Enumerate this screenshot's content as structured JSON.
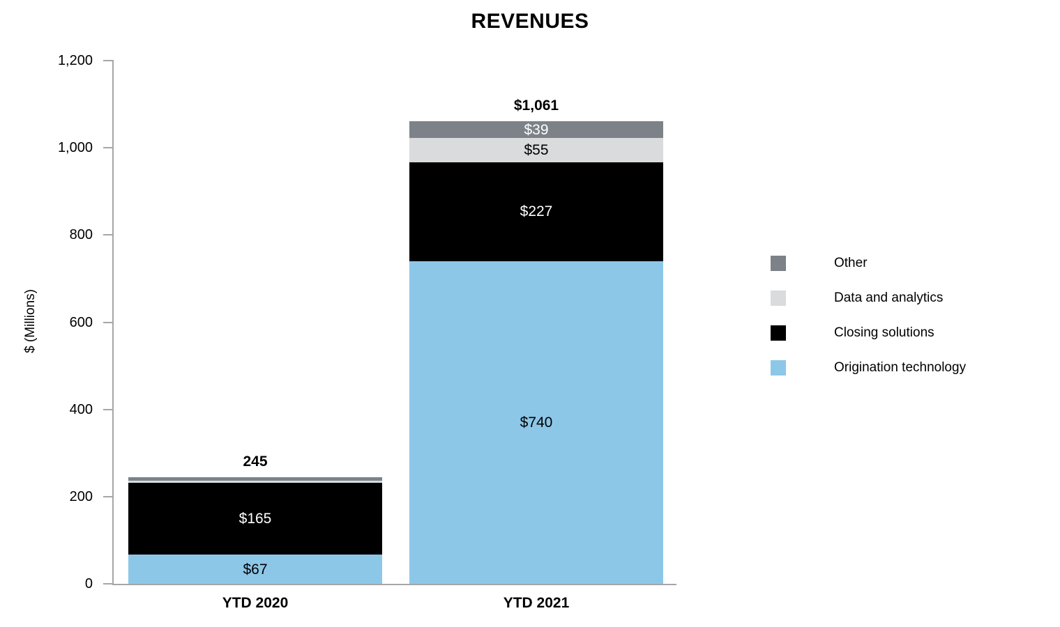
{
  "chart": {
    "axis_color": "#A6A6A6",
    "background_color": "#FFFFFF",
    "text_color": "#000000"
  },
  "chart_data": {
    "type": "bar",
    "stacked": true,
    "title": "REVENUES",
    "ylabel": "$ (Millions)",
    "xlabel": "",
    "ylim": [
      0,
      1200
    ],
    "grid": false,
    "legend_position": "right",
    "categories": [
      "YTD 2020",
      "YTD 2021"
    ],
    "y_ticks": [
      {
        "value": 0,
        "label": "0"
      },
      {
        "value": 200,
        "label": "200"
      },
      {
        "value": 400,
        "label": "400"
      },
      {
        "value": 600,
        "label": "600"
      },
      {
        "value": 800,
        "label": "800"
      },
      {
        "value": 1000,
        "label": "1,000"
      },
      {
        "value": 1200,
        "label": "1,200"
      }
    ],
    "series": [
      {
        "name": "Origination technology",
        "color": "#8DC7E8",
        "label_color": "#000000",
        "values": [
          67,
          740
        ],
        "data_labels": [
          "$67",
          "$740"
        ]
      },
      {
        "name": "Closing solutions",
        "color": "#000000",
        "label_color": "#FFFFFF",
        "values": [
          165,
          227
        ],
        "data_labels": [
          "$165",
          "$227"
        ]
      },
      {
        "name": "Data and analytics",
        "color": "#D9DBDD",
        "label_color": "#000000",
        "values": [
          4,
          55
        ],
        "data_labels": [
          "",
          "$55"
        ]
      },
      {
        "name": "Other",
        "color": "#7C8288",
        "label_color": "#FFFFFF",
        "values": [
          9,
          39
        ],
        "data_labels": [
          "",
          "$39"
        ]
      }
    ],
    "totals": [
      "245",
      "$1,061"
    ],
    "legend": [
      {
        "label": "Other",
        "color": "#7C8288"
      },
      {
        "label": "Data and analytics",
        "color": "#D9DBDD"
      },
      {
        "label": "Closing solutions",
        "color": "#000000"
      },
      {
        "label": "Origination technology",
        "color": "#8DC7E8"
      }
    ]
  }
}
